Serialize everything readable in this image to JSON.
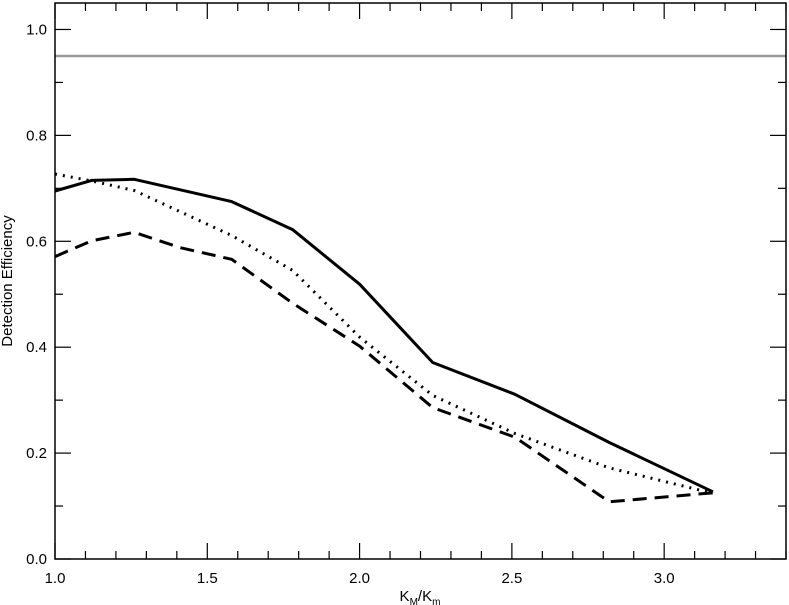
{
  "chart_data": {
    "type": "line",
    "xlabel": "K_M/K_m",
    "xlabel_parts": {
      "base1": "K",
      "sub1": "M",
      "slash": "/",
      "base2": "K",
      "sub2": "m"
    },
    "ylabel": "Detection Efficiency",
    "xlim": [
      1.0,
      3.4
    ],
    "ylim": [
      0.0,
      1.05
    ],
    "x_ticks": [
      1.0,
      1.5,
      2.0,
      2.5,
      3.0
    ],
    "x_tick_labels": [
      "1.0",
      "1.5",
      "2.0",
      "2.5",
      "3.0"
    ],
    "y_ticks": [
      0.0,
      0.2,
      0.4,
      0.6,
      0.8,
      1.0
    ],
    "y_tick_labels": [
      "0.0",
      "0.2",
      "0.4",
      "0.6",
      "0.8",
      "1.0"
    ],
    "x_minor_step": 0.1,
    "y_minor_step": 0.1,
    "grid": false,
    "series": [
      {
        "style": "solid",
        "color": "#000000",
        "x": [
          1.0,
          1.12,
          1.26,
          1.58,
          1.78,
          2.0,
          2.24,
          2.51,
          2.82,
          3.16
        ],
        "y": [
          0.695,
          0.715,
          0.717,
          0.675,
          0.622,
          0.519,
          0.371,
          0.311,
          0.22,
          0.127
        ]
      },
      {
        "style": "dotted",
        "color": "#000000",
        "x": [
          1.0,
          1.12,
          1.26,
          1.58,
          1.78,
          2.0,
          2.24,
          2.51,
          2.82,
          3.16
        ],
        "y": [
          0.727,
          0.714,
          0.696,
          0.611,
          0.545,
          0.419,
          0.309,
          0.237,
          0.172,
          0.124
        ]
      },
      {
        "style": "dashed",
        "color": "#000000",
        "x": [
          1.0,
          1.12,
          1.26,
          1.41,
          1.58,
          1.78,
          2.0,
          2.24,
          2.51,
          2.82,
          3.16
        ],
        "y": [
          0.571,
          0.601,
          0.617,
          0.588,
          0.566,
          0.483,
          0.402,
          0.286,
          0.23,
          0.108,
          0.125
        ]
      }
    ],
    "reference_lines": [
      {
        "orientation": "horizontal",
        "y": 0.95,
        "color": "#999999"
      }
    ]
  }
}
